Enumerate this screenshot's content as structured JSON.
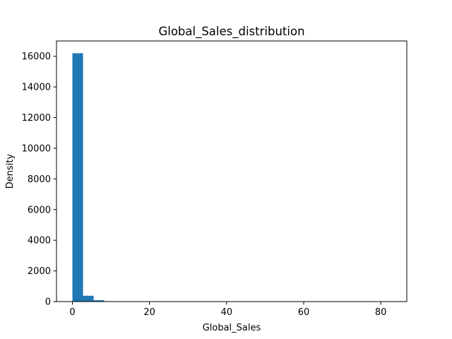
{
  "chart_data": {
    "type": "bar",
    "title": "Global_Sales_distribution",
    "xlabel": "Global_Sales",
    "ylabel": "Density",
    "xlim": [
      -4.127,
      86.747
    ],
    "ylim": [
      0,
      17000
    ],
    "x_ticks": [
      0,
      20,
      40,
      60,
      80
    ],
    "y_ticks": [
      0,
      2000,
      4000,
      6000,
      8000,
      10000,
      12000,
      14000,
      16000
    ],
    "bin_width": 2.7538,
    "bins": [
      {
        "x0": 0.0,
        "x1": 2.754,
        "count": 16200
      },
      {
        "x0": 2.754,
        "x1": 5.508,
        "count": 380
      },
      {
        "x0": 5.508,
        "x1": 8.261,
        "count": 90
      },
      {
        "x0": 8.261,
        "x1": 11.015,
        "count": 25
      },
      {
        "x0": 11.015,
        "x1": 13.769,
        "count": 10
      },
      {
        "x0": 13.769,
        "x1": 16.523,
        "count": 5
      },
      {
        "x0": 16.523,
        "x1": 19.277,
        "count": 2
      },
      {
        "x0": 19.277,
        "x1": 22.03,
        "count": 2
      },
      {
        "x0": 22.03,
        "x1": 24.784,
        "count": 1
      },
      {
        "x0": 24.784,
        "x1": 27.538,
        "count": 0
      },
      {
        "x0": 27.538,
        "x1": 30.292,
        "count": 1
      },
      {
        "x0": 30.292,
        "x1": 33.046,
        "count": 1
      },
      {
        "x0": 33.046,
        "x1": 35.8,
        "count": 1
      },
      {
        "x0": 35.8,
        "x1": 38.553,
        "count": 0
      },
      {
        "x0": 38.553,
        "x1": 41.307,
        "count": 1
      },
      {
        "x0": 41.307,
        "x1": 44.061,
        "count": 0
      },
      {
        "x0": 44.061,
        "x1": 46.815,
        "count": 0
      },
      {
        "x0": 46.815,
        "x1": 49.569,
        "count": 0
      },
      {
        "x0": 49.569,
        "x1": 52.322,
        "count": 0
      },
      {
        "x0": 52.322,
        "x1": 55.076,
        "count": 0
      },
      {
        "x0": 55.076,
        "x1": 57.83,
        "count": 0
      },
      {
        "x0": 57.83,
        "x1": 60.584,
        "count": 0
      },
      {
        "x0": 60.584,
        "x1": 63.338,
        "count": 0
      },
      {
        "x0": 63.338,
        "x1": 66.091,
        "count": 0
      },
      {
        "x0": 66.091,
        "x1": 68.845,
        "count": 0
      },
      {
        "x0": 68.845,
        "x1": 71.599,
        "count": 0
      },
      {
        "x0": 71.599,
        "x1": 74.353,
        "count": 0
      },
      {
        "x0": 74.353,
        "x1": 77.107,
        "count": 0
      },
      {
        "x0": 77.107,
        "x1": 79.86,
        "count": 0
      },
      {
        "x0": 79.86,
        "x1": 82.614,
        "count": 1
      }
    ],
    "bar_color": "#1f77b4",
    "grid": false,
    "legend": "none"
  }
}
